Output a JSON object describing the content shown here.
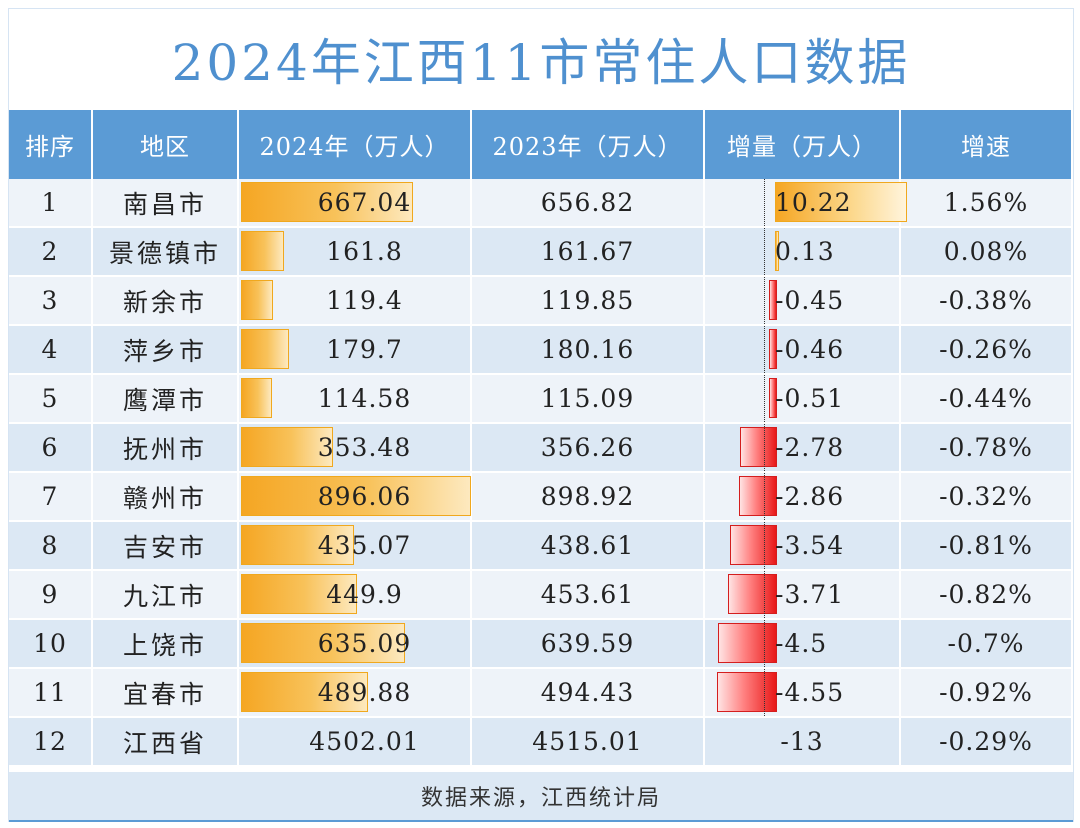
{
  "title": "2024年江西11市常住人口数据",
  "headers": [
    "排序",
    "地区",
    "2024年（万人）",
    "2023年（万人）",
    "增量（万人）",
    "增速"
  ],
  "colors": {
    "header_bg": "#5b9bd5",
    "title": "#4f90cf",
    "bar_2024": "#f5a623",
    "bar_negative": "#e81818"
  },
  "chart_data": {
    "type": "table",
    "title": "2024年江西11市常住人口数据",
    "columns": [
      "排序",
      "地区",
      "2024年（万人）",
      "2023年（万人）",
      "增量（万人）",
      "增速"
    ],
    "rows": [
      {
        "rank": "1",
        "region": "南昌市",
        "pop2024": 667.04,
        "pop2024_text": "667.04",
        "pop2023_text": "656.82",
        "change": 10.22,
        "change_text": "10.22",
        "rate_text": "1.56%"
      },
      {
        "rank": "2",
        "region": "景德镇市",
        "pop2024": 161.8,
        "pop2024_text": "161.8",
        "pop2023_text": "161.67",
        "change": 0.13,
        "change_text": "0.13",
        "rate_text": "0.08%"
      },
      {
        "rank": "3",
        "region": "新余市",
        "pop2024": 119.4,
        "pop2024_text": "119.4",
        "pop2023_text": "119.85",
        "change": -0.45,
        "change_text": "-0.45",
        "rate_text": "-0.38%"
      },
      {
        "rank": "4",
        "region": "萍乡市",
        "pop2024": 179.7,
        "pop2024_text": "179.7",
        "pop2023_text": "180.16",
        "change": -0.46,
        "change_text": "-0.46",
        "rate_text": "-0.26%"
      },
      {
        "rank": "5",
        "region": "鹰潭市",
        "pop2024": 114.58,
        "pop2024_text": "114.58",
        "pop2023_text": "115.09",
        "change": -0.51,
        "change_text": "-0.51",
        "rate_text": "-0.44%"
      },
      {
        "rank": "6",
        "region": "抚州市",
        "pop2024": 353.48,
        "pop2024_text": "353.48",
        "pop2023_text": "356.26",
        "change": -2.78,
        "change_text": "-2.78",
        "rate_text": "-0.78%"
      },
      {
        "rank": "7",
        "region": "赣州市",
        "pop2024": 896.06,
        "pop2024_text": "896.06",
        "pop2023_text": "898.92",
        "change": -2.86,
        "change_text": "-2.86",
        "rate_text": "-0.32%"
      },
      {
        "rank": "8",
        "region": "吉安市",
        "pop2024": 435.07,
        "pop2024_text": "435.07",
        "pop2023_text": "438.61",
        "change": -3.54,
        "change_text": "-3.54",
        "rate_text": "-0.81%"
      },
      {
        "rank": "9",
        "region": "九江市",
        "pop2024": 449.9,
        "pop2024_text": "449.9",
        "pop2023_text": "453.61",
        "change": -3.71,
        "change_text": "-3.71",
        "rate_text": "-0.82%"
      },
      {
        "rank": "10",
        "region": "上饶市",
        "pop2024": 635.09,
        "pop2024_text": "635.09",
        "pop2023_text": "639.59",
        "change": -4.5,
        "change_text": "-4.5",
        "rate_text": "-0.7%"
      },
      {
        "rank": "11",
        "region": "宜春市",
        "pop2024": 489.88,
        "pop2024_text": "489.88",
        "pop2023_text": "494.43",
        "change": -4.55,
        "change_text": "-4.55",
        "rate_text": "-0.92%"
      },
      {
        "rank": "12",
        "region": "江西省",
        "pop2024": 4502.01,
        "pop2024_text": "4502.01",
        "pop2023_text": "4515.01",
        "change": -13,
        "change_text": "-13",
        "rate_text": "-0.29%",
        "no_bars": true
      }
    ]
  },
  "footer": "数据来源，江西统计局"
}
